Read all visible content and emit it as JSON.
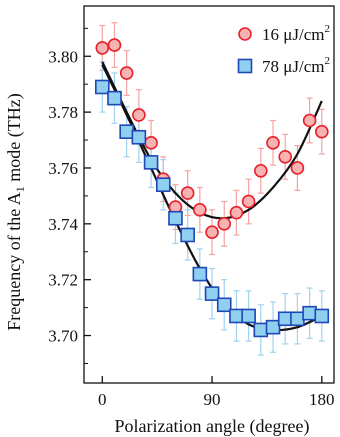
{
  "chart_data": {
    "type": "scatter",
    "xlabel": "Polarization angle (degree)",
    "ylabel": "Frequency of the A",
    "ylabel_sub": "1",
    "ylabel_tail": " mode (THz)",
    "xlim": [
      -15,
      190
    ],
    "ylim": [
      3.683,
      3.818
    ],
    "x_ticks": [
      0,
      90,
      180
    ],
    "x_tick_labels": [
      "0",
      "90",
      "180"
    ],
    "y_ticks": [
      3.7,
      3.72,
      3.74,
      3.76,
      3.78,
      3.8
    ],
    "y_tick_labels": [
      "3.70",
      "3.72",
      "3.74",
      "3.76",
      "3.78",
      "3.80"
    ],
    "grid": false,
    "legend_position": "top-right",
    "series": [
      {
        "name_main": "16 μJ/cm",
        "name_sup": "2",
        "marker": "circle",
        "color": "#e8202a",
        "fill": "#f7b2b2",
        "errcolor": "#f4a3a3",
        "x": [
          0,
          10,
          20,
          30,
          40,
          50,
          60,
          70,
          80,
          90,
          100,
          110,
          120,
          130,
          140,
          150,
          160,
          170,
          180
        ],
        "y": [
          3.803,
          3.804,
          3.794,
          3.779,
          3.769,
          3.756,
          3.746,
          3.751,
          3.745,
          3.737,
          3.74,
          3.744,
          3.748,
          3.759,
          3.769,
          3.764,
          3.76,
          3.777,
          3.773
        ],
        "err": [
          0.008,
          0.008,
          0.008,
          0.009,
          0.008,
          0.008,
          0.008,
          0.008,
          0.008,
          0.008,
          0.008,
          0.008,
          0.008,
          0.008,
          0.008,
          0.008,
          0.008,
          0.008,
          0.008
        ]
      },
      {
        "name_main": "78 μJ/cm",
        "name_sup": "2",
        "marker": "square",
        "color": "#1f47b5",
        "fill": "#8fd0f0",
        "errcolor": "#9fd3f0",
        "x": [
          0,
          10,
          20,
          30,
          40,
          50,
          60,
          70,
          80,
          90,
          100,
          110,
          120,
          130,
          140,
          150,
          160,
          170,
          180
        ],
        "y": [
          3.789,
          3.785,
          3.773,
          3.771,
          3.762,
          3.754,
          3.742,
          3.736,
          3.722,
          3.715,
          3.711,
          3.707,
          3.707,
          3.702,
          3.703,
          3.706,
          3.706,
          3.708,
          3.707
        ],
        "err": [
          0.009,
          0.009,
          0.009,
          0.009,
          0.009,
          0.009,
          0.009,
          0.009,
          0.009,
          0.009,
          0.009,
          0.009,
          0.009,
          0.009,
          0.009,
          0.009,
          0.009,
          0.009,
          0.009
        ]
      }
    ],
    "fits": [
      {
        "color": "#111111",
        "x": [
          0,
          20,
          40,
          60,
          80,
          100,
          120,
          140,
          160,
          180
        ],
        "y": [
          3.798,
          3.78,
          3.763,
          3.751,
          3.744,
          3.742,
          3.745,
          3.753,
          3.765,
          3.784
        ]
      },
      {
        "color": "#111111",
        "x": [
          0,
          20,
          40,
          60,
          80,
          100,
          120,
          140,
          160,
          180
        ],
        "y": [
          3.797,
          3.779,
          3.76,
          3.741,
          3.724,
          3.711,
          3.704,
          3.702,
          3.703,
          3.707
        ]
      }
    ]
  }
}
